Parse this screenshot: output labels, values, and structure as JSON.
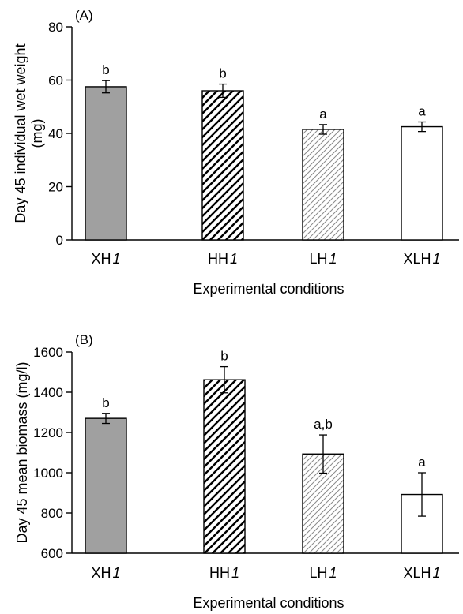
{
  "chart_data": [
    {
      "type": "bar",
      "panel_label": "(A)",
      "categories": [
        {
          "base": "XH",
          "suffix": "1"
        },
        {
          "base": "HH",
          "suffix": "1"
        },
        {
          "base": "LH",
          "suffix": "1"
        },
        {
          "base": "XLH",
          "suffix": "1"
        }
      ],
      "values": [
        57.5,
        56,
        41.5,
        42.5
      ],
      "errors": [
        2.3,
        2.5,
        1.8,
        1.8
      ],
      "significance": [
        "b",
        "b",
        "a",
        "a"
      ],
      "patterns": [
        "solid-gray",
        "hatch-dense",
        "hatch-light",
        "white"
      ],
      "xlabel": "Experimental conditions",
      "ylabel_lines": [
        "Day 45 individual wet weight",
        "(mg)"
      ],
      "ylim": [
        0,
        80
      ],
      "yticks": [
        0,
        20,
        40,
        60,
        80
      ],
      "grid": false
    },
    {
      "type": "bar",
      "panel_label": "(B)",
      "categories": [
        {
          "base": "XH",
          "suffix": "1"
        },
        {
          "base": "HH",
          "suffix": "1"
        },
        {
          "base": "LH",
          "suffix": "1"
        },
        {
          "base": "XLH",
          "suffix": "1"
        }
      ],
      "values": [
        1270,
        1462,
        1093,
        892
      ],
      "errors": [
        25,
        65,
        95,
        108
      ],
      "significance": [
        "b",
        "b",
        "a,b",
        "a"
      ],
      "patterns": [
        "solid-gray",
        "hatch-dense",
        "hatch-light",
        "white"
      ],
      "xlabel": "Experimental conditions",
      "ylabel_lines": [
        "Day 45 mean biomass (mg/l)"
      ],
      "ylim": [
        600,
        1600
      ],
      "yticks": [
        600,
        800,
        1000,
        1200,
        1400,
        1600
      ],
      "grid": false
    }
  ],
  "colors": {
    "solid_gray": "#a0a0a0",
    "light_hatch": "#8a8a8a",
    "axis": "#000000"
  }
}
